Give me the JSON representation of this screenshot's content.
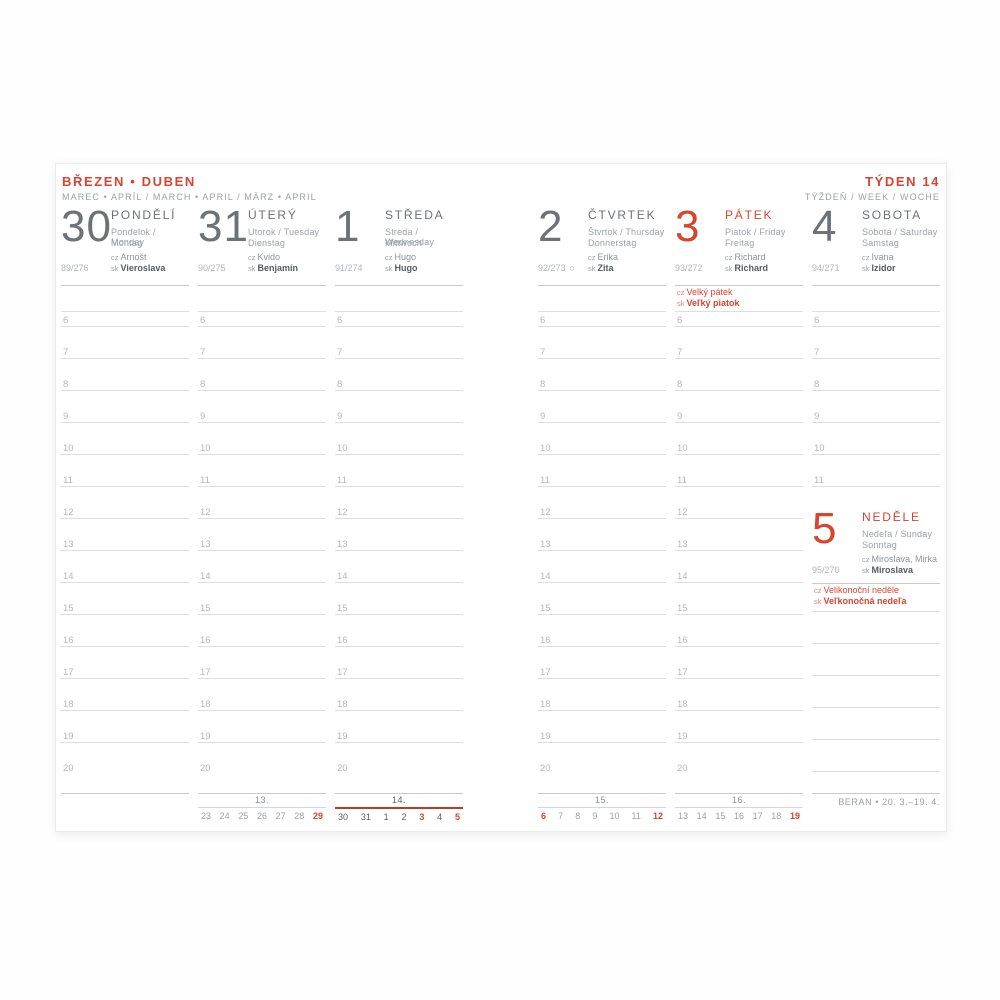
{
  "header": {
    "left_title": "BŘEZEN • DUBEN",
    "left_subtitle": "MAREC • APRÍL / MARCH • APRIL / MÄRZ • APRIL",
    "right_title": "TÝDEN 14",
    "right_subtitle": "TÝŽDEŇ / WEEK / WOCHE"
  },
  "labels": {
    "cz": "cz",
    "sk": "sk"
  },
  "colors": {
    "accent_red": "#d6452f",
    "ink_gray": "#6d7277",
    "muted_gray": "#9ba1a6",
    "line_gray": "#dcdee0"
  },
  "days": [
    {
      "id": "monday",
      "date": "30",
      "name": "PONDĚLÍ",
      "sub1": "Pondelok / Monday",
      "sub2": "Montag",
      "cz": "Arnošt",
      "sk": "Vieroslava",
      "doy": "89/276",
      "red": false,
      "moon": "",
      "holiday_cz": "",
      "holiday_sk": "",
      "hours": [
        "6",
        "7",
        "8",
        "9",
        "10",
        "11",
        "12",
        "13",
        "14",
        "15",
        "16",
        "17",
        "18",
        "19",
        "20"
      ]
    },
    {
      "id": "tuesday",
      "date": "31",
      "name": "ÚTERÝ",
      "sub1": "Utorok / Tuesday",
      "sub2": "Dienstag",
      "cz": "Kvido",
      "sk": "Benjamín",
      "doy": "90/275",
      "red": false,
      "moon": "",
      "holiday_cz": "",
      "holiday_sk": "",
      "hours": [
        "6",
        "7",
        "8",
        "9",
        "10",
        "11",
        "12",
        "13",
        "14",
        "15",
        "16",
        "17",
        "18",
        "19",
        "20"
      ]
    },
    {
      "id": "wednesday",
      "date": "1",
      "name": "STŘEDA",
      "sub1": "Streda / Wednesday",
      "sub2": "Mittwoch",
      "cz": "Hugo",
      "sk": "Hugo",
      "doy": "91/274",
      "red": false,
      "moon": "",
      "holiday_cz": "",
      "holiday_sk": "",
      "hours": [
        "6",
        "7",
        "8",
        "9",
        "10",
        "11",
        "12",
        "13",
        "14",
        "15",
        "16",
        "17",
        "18",
        "19",
        "20"
      ]
    },
    {
      "id": "thursday",
      "date": "2",
      "name": "ČTVRTEK",
      "sub1": "Štvrtok / Thursday",
      "sub2": "Donnerstag",
      "cz": "Erika",
      "sk": "Zita",
      "doy": "92/273",
      "red": false,
      "moon": "○",
      "holiday_cz": "",
      "holiday_sk": "",
      "hours": [
        "6",
        "7",
        "8",
        "9",
        "10",
        "11",
        "12",
        "13",
        "14",
        "15",
        "16",
        "17",
        "18",
        "19",
        "20"
      ]
    },
    {
      "id": "friday",
      "date": "3",
      "name": "PÁTEK",
      "sub1": "Piatok / Friday",
      "sub2": "Freitag",
      "cz": "Richard",
      "sk": "Richard",
      "doy": "93/272",
      "red": true,
      "moon": "",
      "holiday_cz": "Velký pátek",
      "holiday_sk": "Veľký piatok",
      "hours": [
        "6",
        "7",
        "8",
        "9",
        "10",
        "11",
        "12",
        "13",
        "14",
        "15",
        "16",
        "17",
        "18",
        "19",
        "20"
      ]
    },
    {
      "id": "saturday",
      "date": "4",
      "name": "SOBOTA",
      "sub1": "Sobota / Saturday",
      "sub2": "Samstag",
      "cz": "Ivana",
      "sk": "Izidor",
      "doy": "94/271",
      "red": false,
      "moon": "",
      "holiday_cz": "",
      "holiday_sk": "",
      "hours": [
        "6",
        "7",
        "8",
        "9",
        "10",
        "11"
      ]
    }
  ],
  "sunday": {
    "date": "5",
    "name": "NEDĚLE",
    "sub1": "Nedeľa / Sunday",
    "sub2": "Sonntag",
    "cz": "Miroslava, Mirka",
    "sk": "Miroslava",
    "doy": "95/270",
    "holiday_cz": "Velikonoční neděle",
    "holiday_sk": "Veľkonočná nedeľa",
    "blank_lines": 5
  },
  "minicals": [
    {
      "week": "13.",
      "days": [
        "23",
        "24",
        "25",
        "26",
        "27",
        "28",
        "29"
      ],
      "red_idx": [
        6
      ],
      "current": false
    },
    {
      "week": "14.",
      "days": [
        "30",
        "31",
        "1",
        "2",
        "3",
        "4",
        "5"
      ],
      "red_idx": [
        4,
        6
      ],
      "current": true
    },
    {
      "week": "15.",
      "days": [
        "6",
        "7",
        "8",
        "9",
        "10",
        "11",
        "12"
      ],
      "red_idx": [
        0,
        6
      ],
      "current": false
    },
    {
      "week": "16.",
      "days": [
        "13",
        "14",
        "15",
        "16",
        "17",
        "18",
        "19"
      ],
      "red_idx": [
        6
      ],
      "current": false
    }
  ],
  "footer": {
    "zodiac": "BERAN • 20. 3.–19. 4."
  }
}
